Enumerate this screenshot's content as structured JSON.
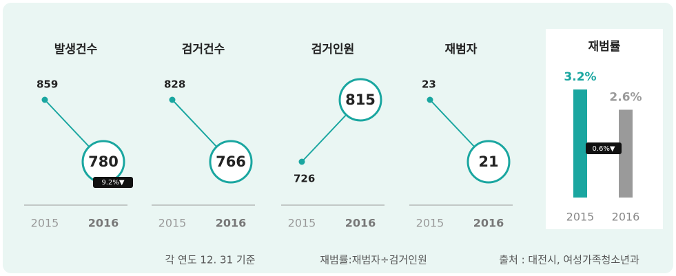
{
  "chart_data": [
    {
      "type": "slope",
      "title": "발생건수",
      "categories": [
        "2015",
        "2016"
      ],
      "values": [
        859,
        780
      ],
      "color": "#1aa6a0",
      "annotation": "9.2%▼"
    },
    {
      "type": "slope",
      "title": "검거건수",
      "categories": [
        "2015",
        "2016"
      ],
      "values": [
        828,
        766
      ],
      "color": "#1aa6a0"
    },
    {
      "type": "slope",
      "title": "검거인원",
      "categories": [
        "2015",
        "2016"
      ],
      "values": [
        726,
        815
      ],
      "color": "#1aa6a0"
    },
    {
      "type": "slope",
      "title": "재범자",
      "categories": [
        "2015",
        "2016"
      ],
      "values": [
        23,
        21
      ],
      "color": "#1aa6a0"
    },
    {
      "type": "bar",
      "title": "재범률",
      "categories": [
        "2015",
        "2016"
      ],
      "values": [
        3.2,
        2.6
      ],
      "value_labels": [
        "3.2%",
        "2.6%"
      ],
      "colors": [
        "#1aa6a0",
        "#9a9a9a"
      ],
      "annotation": "0.6%▼"
    }
  ],
  "notes": [
    "각 연도 12. 31 기준",
    "재범률:재범자÷검거인원",
    "출처 : 대전시, 여성가족청소년과"
  ]
}
